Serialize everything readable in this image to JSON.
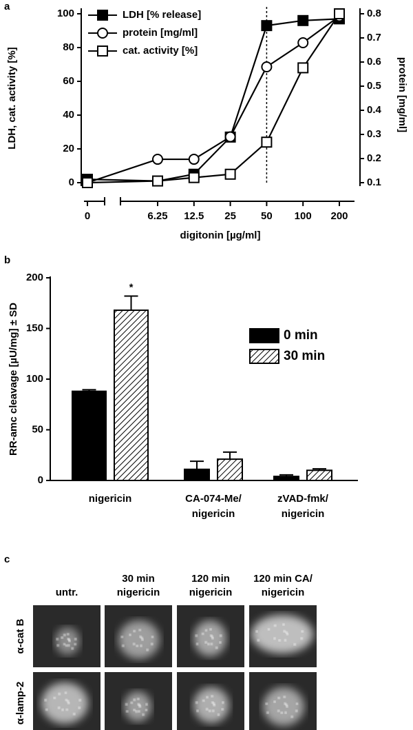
{
  "chart_data": [
    {
      "type": "line",
      "panel_label": "a",
      "x_label": "digitonin [µg/ml]",
      "y_label": "LDH, cat. activity [%]",
      "y2_label": "protein [mg/ml]",
      "categories": [
        "0",
        "6.25",
        "12.5",
        "25",
        "50",
        "100",
        "200"
      ],
      "ylim": [
        0,
        100
      ],
      "yticks": [
        0,
        20,
        40,
        60,
        80,
        100
      ],
      "y2lim": [
        0.1,
        0.8
      ],
      "y2ticks": [
        0.1,
        0.2,
        0.3,
        0.4,
        0.5,
        0.6,
        0.7,
        0.8
      ],
      "legend": "top-left",
      "series": [
        {
          "name": "LDH [% release]",
          "color": "#000000",
          "marker": "square-filled",
          "values": [
            2,
            1,
            5,
            27,
            93,
            96,
            97
          ]
        },
        {
          "name": "protein [mg/ml]",
          "color": "#000000",
          "marker": "circle-open",
          "axis": "y2",
          "values": [
            0.1,
            0.197,
            0.197,
            0.29,
            0.58,
            0.68,
            0.79
          ]
        },
        {
          "name": "cat. activity [%]",
          "color": "#000000",
          "marker": "square-open",
          "values": [
            0,
            1,
            3,
            5,
            24,
            68,
            100
          ]
        }
      ]
    },
    {
      "type": "bar",
      "panel_label": "b",
      "y_label": "RR-amc cleavage [µU/mg] ± SD",
      "categories": [
        [
          "nigericin"
        ],
        [
          "CA-074-Me/",
          "nigericin"
        ],
        [
          "zVAD-fmk/",
          "nigericin"
        ]
      ],
      "ylim": [
        0,
        200
      ],
      "yticks": [
        0,
        50,
        100,
        150,
        200
      ],
      "legend": "upper-right",
      "annotations": [
        "*"
      ],
      "series": [
        {
          "name": "0 min",
          "color": "#000000",
          "fill": "solid",
          "values": [
            88,
            11,
            4
          ],
          "errors": [
            1.5,
            8,
            1.5
          ]
        },
        {
          "name": "30 min",
          "color": "#000000",
          "fill": "hatch",
          "values": [
            168,
            21,
            10
          ],
          "errors": [
            14,
            7,
            1.5
          ]
        }
      ]
    }
  ],
  "panel_c": {
    "panel_label": "c",
    "columns": [
      [
        "untr."
      ],
      [
        "30 min",
        "nigericin"
      ],
      [
        "120 min",
        "nigericin"
      ],
      [
        "120 min CA/",
        "nigericin"
      ]
    ],
    "rows": [
      "α-cat B",
      "α-lamp-2"
    ]
  }
}
